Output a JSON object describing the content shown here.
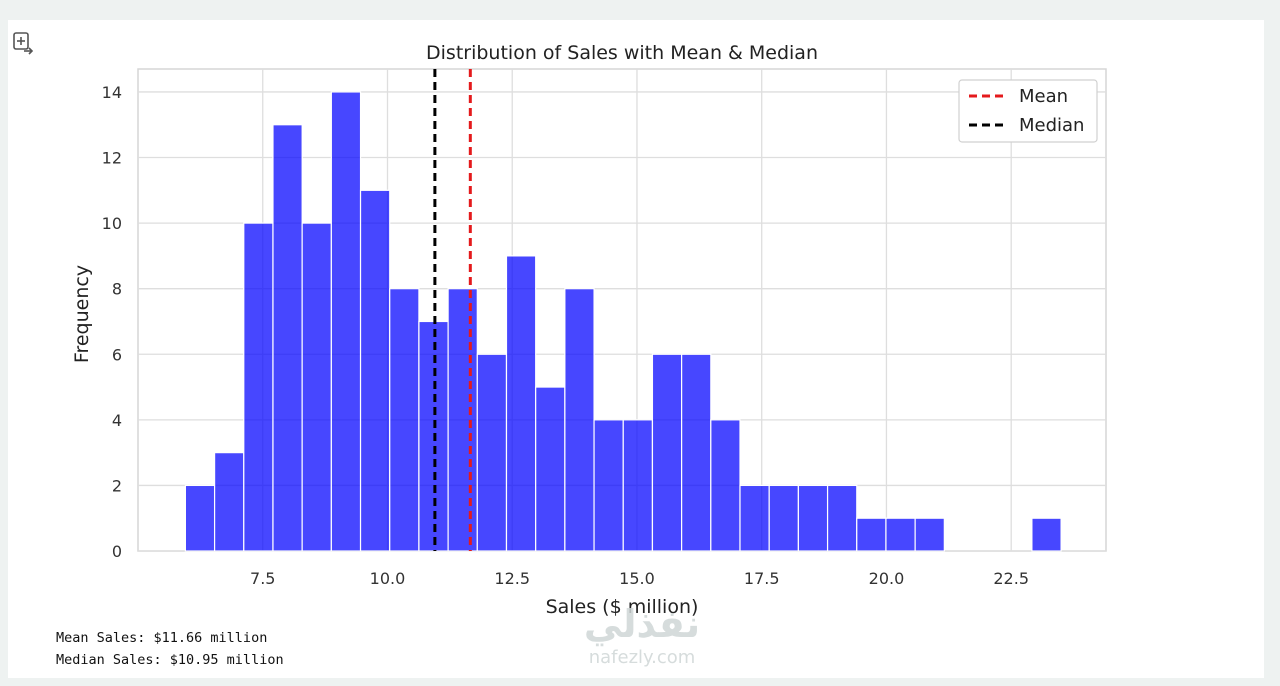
{
  "output_icon": "expand-output-icon",
  "chart_data": {
    "type": "bar",
    "title": "Distribution of Sales with Mean & Median",
    "xlabel": "Sales ($ million)",
    "ylabel": "Frequency",
    "xlim": [
      5.0,
      24.4
    ],
    "ylim": [
      0,
      14.7
    ],
    "x_ticks": [
      7.5,
      10.0,
      12.5,
      15.0,
      17.5,
      20.0,
      22.5
    ],
    "x_tick_labels": [
      "7.5",
      "10.0",
      "12.5",
      "15.0",
      "17.5",
      "20.0",
      "22.5"
    ],
    "y_ticks": [
      0,
      2,
      4,
      6,
      8,
      10,
      12,
      14
    ],
    "y_tick_labels": [
      "0",
      "2",
      "4",
      "6",
      "8",
      "10",
      "12",
      "14"
    ],
    "grid": true,
    "bar_color": "#0000ff",
    "bin_start": 5.95,
    "bin_width": 0.585,
    "counts": [
      2,
      3,
      10,
      13,
      10,
      14,
      11,
      8,
      7,
      8,
      6,
      9,
      5,
      8,
      4,
      4,
      6,
      6,
      4,
      2,
      2,
      2,
      2,
      1,
      1,
      1,
      0,
      0,
      0,
      1
    ],
    "lines": [
      {
        "name": "Mean",
        "x": 11.66,
        "color": "#e41a1c",
        "style": "dashed"
      },
      {
        "name": "Median",
        "x": 10.95,
        "color": "#000000",
        "style": "dashed"
      }
    ],
    "legend_position": "top-right"
  },
  "output_lines": [
    "Mean Sales: $11.66 million",
    "Median Sales: $10.95 million"
  ],
  "watermark": {
    "arabic": "نفذلي",
    "latin": "nafezly.com"
  }
}
